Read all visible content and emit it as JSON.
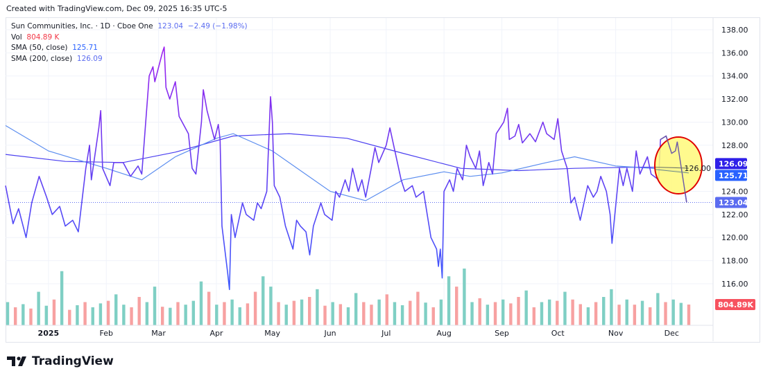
{
  "header": {
    "created": "Created with TradingView.com, Dec 09, 2025 16:35 UTC-5"
  },
  "legend": {
    "symbol": "Sun Communities, Inc. · 1D · Cboe One",
    "last": "123.04",
    "change": "−2.49 (−1.98%)",
    "vol_label": "Vol",
    "vol_value": "804.89 K",
    "sma50_label": "SMA (50, close)",
    "sma50_value": "125.71",
    "sma200_label": "SMA (200, close)",
    "sma200_value": "126.09"
  },
  "brand": {
    "name": "TradingView"
  },
  "colors": {
    "price_high": "#a020f0",
    "price_low": "#3d5afe",
    "sma50": "#5b8def",
    "sma200": "#4a3ff0",
    "vol_up": "#7fcfc4",
    "vol_down": "#f7a1a1",
    "badge_sma200": "#2e1fe8",
    "badge_sma50": "#2962ff",
    "badge_last": "#5b6cf0",
    "highlight_fill": "#fff97a",
    "highlight_stroke": "#e00000"
  },
  "chart_data": {
    "type": "line",
    "ylim": [
      114.5,
      139
    ],
    "y_ticks": [
      "138.00",
      "136.00",
      "134.00",
      "132.00",
      "130.00",
      "128.00",
      "126.00",
      "124.00",
      "122.00",
      "120.00",
      "118.00",
      "116.00"
    ],
    "x_ticks": [
      {
        "label": "2025",
        "date": "2025-01-01"
      },
      {
        "label": "Feb",
        "date": "2025-02-01"
      },
      {
        "label": "Mar",
        "date": "2025-03-01"
      },
      {
        "label": "Apr",
        "date": "2025-04-01"
      },
      {
        "label": "May",
        "date": "2025-05-01"
      },
      {
        "label": "Jun",
        "date": "2025-06-01"
      },
      {
        "label": "Jul",
        "date": "2025-07-01"
      },
      {
        "label": "Aug",
        "date": "2025-08-01"
      },
      {
        "label": "Sep",
        "date": "2025-09-01"
      },
      {
        "label": "Oct",
        "date": "2025-10-01"
      },
      {
        "label": "Nov",
        "date": "2025-11-01"
      },
      {
        "label": "Dec",
        "date": "2025-12-01"
      }
    ],
    "xlim": [
      "2024-12-09",
      "2026-01-01"
    ],
    "price": [
      [
        "2024-12-09",
        124.5
      ],
      [
        "2024-12-13",
        121.2
      ],
      [
        "2024-12-16",
        122.5
      ],
      [
        "2024-12-20",
        120
      ],
      [
        "2024-12-23",
        123
      ],
      [
        "2024-12-27",
        125.3
      ],
      [
        "2024-12-31",
        123.5
      ],
      [
        "2025-01-03",
        122
      ],
      [
        "2025-01-07",
        122.7
      ],
      [
        "2025-01-10",
        121
      ],
      [
        "2025-01-14",
        121.5
      ],
      [
        "2025-01-17",
        120.5
      ],
      [
        "2025-01-21",
        126
      ],
      [
        "2025-01-23",
        128
      ],
      [
        "2025-01-24",
        125
      ],
      [
        "2025-01-28",
        129.5
      ],
      [
        "2025-01-29",
        131
      ],
      [
        "2025-01-30",
        126
      ],
      [
        "2025-02-03",
        124.5
      ],
      [
        "2025-02-05",
        126.5
      ],
      [
        "2025-02-10",
        126.5
      ],
      [
        "2025-02-14",
        125.3
      ],
      [
        "2025-02-18",
        126.2
      ],
      [
        "2025-02-20",
        125.5
      ],
      [
        "2025-02-24",
        134
      ],
      [
        "2025-02-26",
        134.8
      ],
      [
        "2025-02-27",
        133.5
      ],
      [
        "2025-03-03",
        136
      ],
      [
        "2025-03-04",
        136.5
      ],
      [
        "2025-03-05",
        133
      ],
      [
        "2025-03-07",
        132
      ],
      [
        "2025-03-10",
        133.5
      ],
      [
        "2025-03-12",
        130.5
      ],
      [
        "2025-03-17",
        129
      ],
      [
        "2025-03-19",
        126
      ],
      [
        "2025-03-21",
        125.5
      ],
      [
        "2025-03-24",
        130
      ],
      [
        "2025-03-25",
        132.8
      ],
      [
        "2025-03-27",
        131
      ],
      [
        "2025-03-31",
        128.5
      ],
      [
        "2025-04-02",
        129.8
      ],
      [
        "2025-04-03",
        128.5
      ],
      [
        "2025-04-04",
        121
      ],
      [
        "2025-04-07",
        117
      ],
      [
        "2025-04-08",
        115.5
      ],
      [
        "2025-04-09",
        122
      ],
      [
        "2025-04-11",
        120
      ],
      [
        "2025-04-15",
        123
      ],
      [
        "2025-04-17",
        122
      ],
      [
        "2025-04-21",
        121.5
      ],
      [
        "2025-04-23",
        123
      ],
      [
        "2025-04-25",
        122.5
      ],
      [
        "2025-04-28",
        124
      ],
      [
        "2025-04-30",
        132.2
      ],
      [
        "2025-05-01",
        130
      ],
      [
        "2025-05-02",
        124.5
      ],
      [
        "2025-05-05",
        123.5
      ],
      [
        "2025-05-08",
        121
      ],
      [
        "2025-05-12",
        119
      ],
      [
        "2025-05-14",
        121.5
      ],
      [
        "2025-05-16",
        121
      ],
      [
        "2025-05-19",
        120.5
      ],
      [
        "2025-05-21",
        118.5
      ],
      [
        "2025-05-23",
        121
      ],
      [
        "2025-05-27",
        123
      ],
      [
        "2025-05-29",
        122
      ],
      [
        "2025-06-02",
        121.5
      ],
      [
        "2025-06-04",
        124
      ],
      [
        "2025-06-06",
        123.5
      ],
      [
        "2025-06-09",
        125
      ],
      [
        "2025-06-11",
        124
      ],
      [
        "2025-06-13",
        126
      ],
      [
        "2025-06-16",
        124
      ],
      [
        "2025-06-18",
        125
      ],
      [
        "2025-06-20",
        123.5
      ],
      [
        "2025-06-23",
        126
      ],
      [
        "2025-06-25",
        127.8
      ],
      [
        "2025-06-27",
        126.5
      ],
      [
        "2025-07-01",
        128
      ],
      [
        "2025-07-03",
        129.5
      ],
      [
        "2025-07-07",
        126.5
      ],
      [
        "2025-07-09",
        125
      ],
      [
        "2025-07-11",
        124
      ],
      [
        "2025-07-15",
        124.5
      ],
      [
        "2025-07-17",
        123.5
      ],
      [
        "2025-07-21",
        124
      ],
      [
        "2025-07-23",
        122
      ],
      [
        "2025-07-25",
        120
      ],
      [
        "2025-07-28",
        119
      ],
      [
        "2025-07-29",
        117.5
      ],
      [
        "2025-07-30",
        119
      ],
      [
        "2025-07-31",
        116.5
      ],
      [
        "2025-08-01",
        124
      ],
      [
        "2025-08-04",
        125
      ],
      [
        "2025-08-06",
        124
      ],
      [
        "2025-08-08",
        126
      ],
      [
        "2025-08-11",
        125
      ],
      [
        "2025-08-13",
        128
      ],
      [
        "2025-08-15",
        127
      ],
      [
        "2025-08-18",
        126
      ],
      [
        "2025-08-20",
        127.5
      ],
      [
        "2025-08-22",
        124.5
      ],
      [
        "2025-08-25",
        126.5
      ],
      [
        "2025-08-27",
        125.5
      ],
      [
        "2025-08-29",
        129
      ],
      [
        "2025-09-02",
        130
      ],
      [
        "2025-09-04",
        131.2
      ],
      [
        "2025-09-05",
        128.5
      ],
      [
        "2025-09-08",
        128.8
      ],
      [
        "2025-09-10",
        129.8
      ],
      [
        "2025-09-12",
        128.2
      ],
      [
        "2025-09-16",
        129
      ],
      [
        "2025-09-19",
        128.3
      ],
      [
        "2025-09-23",
        130
      ],
      [
        "2025-09-25",
        129
      ],
      [
        "2025-09-29",
        128.5
      ],
      [
        "2025-10-01",
        130.3
      ],
      [
        "2025-10-03",
        127.5
      ],
      [
        "2025-10-06",
        126
      ],
      [
        "2025-10-08",
        123
      ],
      [
        "2025-10-10",
        123.5
      ],
      [
        "2025-10-13",
        121.5
      ],
      [
        "2025-10-15",
        123
      ],
      [
        "2025-10-17",
        124.5
      ],
      [
        "2025-10-20",
        123.5
      ],
      [
        "2025-10-22",
        124
      ],
      [
        "2025-10-24",
        125.3
      ],
      [
        "2025-10-27",
        124
      ],
      [
        "2025-10-29",
        122
      ],
      [
        "2025-10-30",
        119.5
      ],
      [
        "2025-11-03",
        126
      ],
      [
        "2025-11-05",
        124.5
      ],
      [
        "2025-11-07",
        126
      ],
      [
        "2025-11-10",
        124
      ],
      [
        "2025-11-12",
        127.5
      ],
      [
        "2025-11-14",
        125.5
      ],
      [
        "2025-11-18",
        127
      ],
      [
        "2025-11-20",
        125.5
      ],
      [
        "2025-11-24",
        125
      ],
      [
        "2025-11-25",
        128.5
      ],
      [
        "2025-11-28",
        128.8
      ],
      [
        "2025-12-01",
        127.3
      ],
      [
        "2025-12-03",
        127.5
      ],
      [
        "2025-12-04",
        128.3
      ],
      [
        "2025-12-09",
        123.04
      ]
    ],
    "sma50": [
      [
        "2024-12-09",
        129.7
      ],
      [
        "2025-01-01",
        127.5
      ],
      [
        "2025-02-01",
        126
      ],
      [
        "2025-02-20",
        125
      ],
      [
        "2025-03-10",
        127
      ],
      [
        "2025-04-01",
        128.6
      ],
      [
        "2025-04-10",
        129
      ],
      [
        "2025-05-01",
        127.5
      ],
      [
        "2025-06-01",
        124
      ],
      [
        "2025-06-20",
        123.2
      ],
      [
        "2025-07-10",
        125
      ],
      [
        "2025-08-01",
        125.7
      ],
      [
        "2025-08-15",
        125.3
      ],
      [
        "2025-09-01",
        125.6
      ],
      [
        "2025-09-25",
        126.5
      ],
      [
        "2025-10-10",
        127
      ],
      [
        "2025-11-01",
        126.2
      ],
      [
        "2025-11-20",
        126
      ],
      [
        "2025-12-09",
        125.71
      ]
    ],
    "sma200": [
      [
        "2024-12-09",
        127.2
      ],
      [
        "2025-01-10",
        126.6
      ],
      [
        "2025-02-10",
        126.5
      ],
      [
        "2025-03-10",
        127.4
      ],
      [
        "2025-04-10",
        128.8
      ],
      [
        "2025-05-10",
        129
      ],
      [
        "2025-06-10",
        128.6
      ],
      [
        "2025-07-10",
        127.3
      ],
      [
        "2025-08-10",
        126
      ],
      [
        "2025-09-10",
        125.8
      ],
      [
        "2025-10-10",
        126
      ],
      [
        "2025-11-10",
        126.1
      ],
      [
        "2025-12-09",
        126.09
      ]
    ],
    "volume_k": [
      900,
      700,
      820,
      650,
      1300,
      760,
      1000,
      2100,
      600,
      780,
      900,
      700,
      850,
      950,
      1200,
      800,
      700,
      1100,
      900,
      1500,
      720,
      680,
      900,
      800,
      950,
      1700,
      1300,
      800,
      900,
      1000,
      700,
      850,
      1300,
      1900,
      1500,
      900,
      800,
      950,
      1000,
      1100,
      1400,
      760,
      900,
      820,
      700,
      1250,
      900,
      800,
      1000,
      1200,
      900,
      780,
      950,
      1300,
      880,
      700,
      1000,
      1900,
      1500,
      2200,
      900,
      1050,
      800,
      900,
      1000,
      850,
      1100,
      1350,
      700,
      900,
      1000,
      950,
      1300,
      1000,
      820,
      700,
      900,
      1100,
      1400,
      800,
      1000,
      800,
      950,
      700,
      1250,
      900,
      1000,
      870,
      805
    ],
    "volume_up": [
      1,
      0,
      1,
      0,
      1,
      1,
      0,
      1,
      0,
      1,
      0,
      1,
      1,
      0,
      1,
      1,
      0,
      0,
      1,
      1,
      0,
      1,
      0,
      1,
      1,
      1,
      0,
      1,
      0,
      1,
      1,
      0,
      0,
      1,
      1,
      0,
      1,
      0,
      1,
      0,
      1,
      0,
      1,
      0,
      1,
      1,
      0,
      0,
      1,
      0,
      1,
      1,
      0,
      0,
      1,
      0,
      1,
      1,
      0,
      1,
      1,
      0,
      1,
      0,
      1,
      0,
      0,
      1,
      0,
      1,
      1,
      0,
      1,
      0,
      0,
      1,
      0,
      1,
      1,
      0,
      1,
      0,
      1,
      0,
      1,
      0,
      1,
      1,
      0
    ]
  }
}
